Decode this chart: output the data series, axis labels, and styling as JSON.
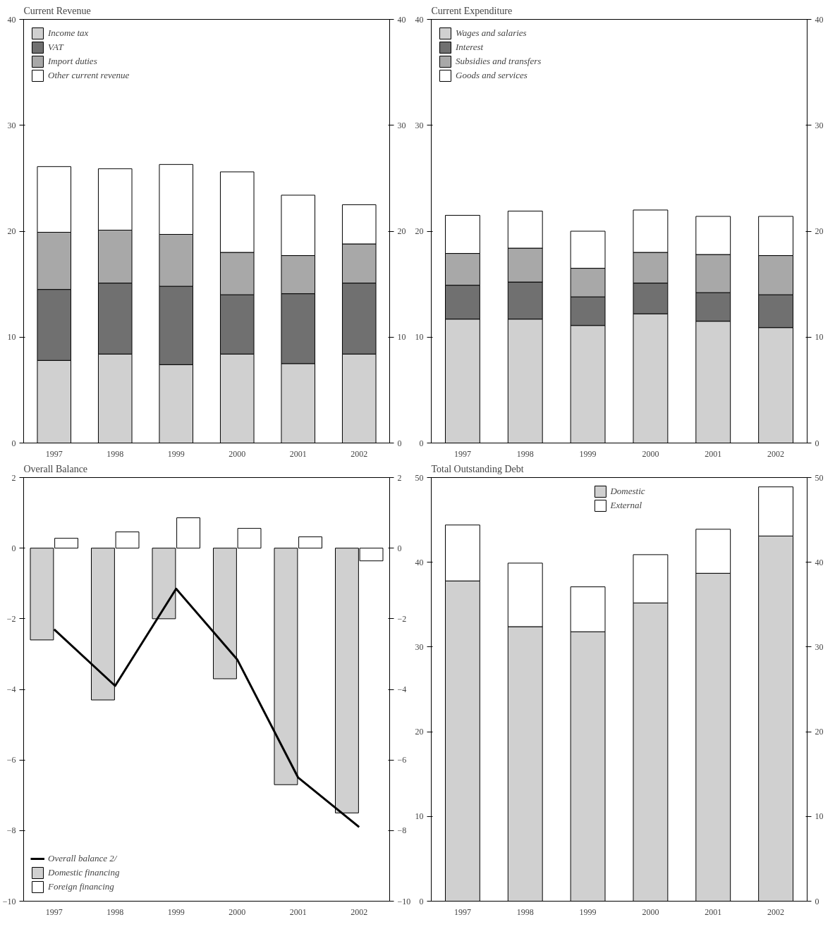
{
  "chart_data": [
    {
      "type": "bar",
      "title": "Current Revenue",
      "categories": [
        "1997",
        "1998",
        "1999",
        "2000",
        "2001",
        "2002"
      ],
      "stacked": true,
      "series": [
        {
          "name": "Income tax",
          "color": "#d0d0d0",
          "values": [
            7.8,
            8.4,
            7.4,
            8.4,
            7.5,
            8.4
          ]
        },
        {
          "name": "VAT",
          "color": "#707070",
          "values": [
            6.7,
            6.7,
            7.4,
            5.6,
            6.6,
            6.7
          ]
        },
        {
          "name": "Import duties",
          "color": "#a8a8a8",
          "values": [
            5.4,
            5.0,
            4.9,
            4.0,
            3.6,
            3.7
          ]
        },
        {
          "name": "Other current revenue",
          "color": "#ffffff",
          "values": [
            6.2,
            5.8,
            6.6,
            7.6,
            5.7,
            3.7
          ]
        }
      ],
      "ylim": [
        0,
        40
      ],
      "yticks": [
        0,
        10,
        20,
        30,
        40
      ],
      "y2lim": [
        0,
        40
      ],
      "y2ticks": [
        0,
        10,
        20,
        30,
        40
      ],
      "legend": "top left",
      "grid": false
    },
    {
      "type": "bar",
      "title": "Current Expenditure",
      "categories": [
        "1997",
        "1998",
        "1999",
        "2000",
        "2001",
        "2002"
      ],
      "stacked": true,
      "series": [
        {
          "name": "Wages and salaries",
          "color": "#d0d0d0",
          "values": [
            11.7,
            11.7,
            11.1,
            12.2,
            11.5,
            10.9
          ]
        },
        {
          "name": "Interest",
          "color": "#707070",
          "values": [
            3.2,
            3.5,
            2.7,
            2.9,
            2.7,
            3.1
          ]
        },
        {
          "name": "Subsidies and transfers",
          "color": "#a8a8a8",
          "values": [
            3.0,
            3.2,
            2.7,
            2.9,
            3.6,
            3.7
          ]
        },
        {
          "name": "Goods and services",
          "color": "#ffffff",
          "values": [
            3.6,
            3.5,
            3.5,
            4.0,
            3.6,
            3.7
          ]
        }
      ],
      "ylim": [
        0,
        40
      ],
      "yticks": [
        0,
        10,
        20,
        30,
        40
      ],
      "y2lim": [
        0,
        40
      ],
      "y2ticks": [
        0,
        10,
        20,
        30,
        40
      ],
      "legend": "top left",
      "grid": false
    },
    {
      "type": "bar",
      "title": "Overall Balance",
      "categories": [
        "1997",
        "1998",
        "1999",
        "2000",
        "2001",
        "2002"
      ],
      "series": [
        {
          "name": "Overall balance 2/",
          "type": "line",
          "color": "#000000",
          "values": [
            -2.3,
            -3.9,
            -1.15,
            -3.15,
            -6.5,
            -7.9
          ]
        },
        {
          "name": "Domestic financing",
          "color": "#d0d0d0",
          "values": [
            -2.6,
            -4.3,
            -2.0,
            -3.7,
            -6.7,
            -7.5
          ]
        },
        {
          "name": "Foreign financing",
          "color": "#ffffff",
          "values": [
            0.28,
            0.46,
            0.86,
            0.56,
            0.32,
            -0.36
          ]
        }
      ],
      "ylim": [
        -10,
        2
      ],
      "yticks": [
        -10,
        -8,
        -6,
        -4,
        -2,
        0,
        2
      ],
      "y2lim": [
        -10,
        2
      ],
      "y2ticks": [
        -10,
        -8,
        -6,
        -4,
        -2,
        0,
        2
      ],
      "legend": "bottom left",
      "grid": false
    },
    {
      "type": "bar",
      "title": "Total Outstanding Debt",
      "categories": [
        "1997",
        "1998",
        "1999",
        "2000",
        "2001",
        "2002"
      ],
      "stacked": true,
      "series": [
        {
          "name": "Domestic",
          "color": "#d0d0d0",
          "values": [
            37.8,
            32.4,
            31.8,
            35.2,
            38.7,
            43.1
          ]
        },
        {
          "name": "External",
          "color": "#ffffff",
          "values": [
            6.6,
            7.5,
            5.3,
            5.7,
            5.2,
            5.8
          ]
        }
      ],
      "ylim": [
        0,
        50
      ],
      "yticks": [
        0,
        10,
        20,
        30,
        40,
        50
      ],
      "y2lim": [
        0,
        50
      ],
      "y2ticks": [
        0,
        10,
        20,
        30,
        40,
        50
      ],
      "legend": "top",
      "grid": false
    }
  ]
}
